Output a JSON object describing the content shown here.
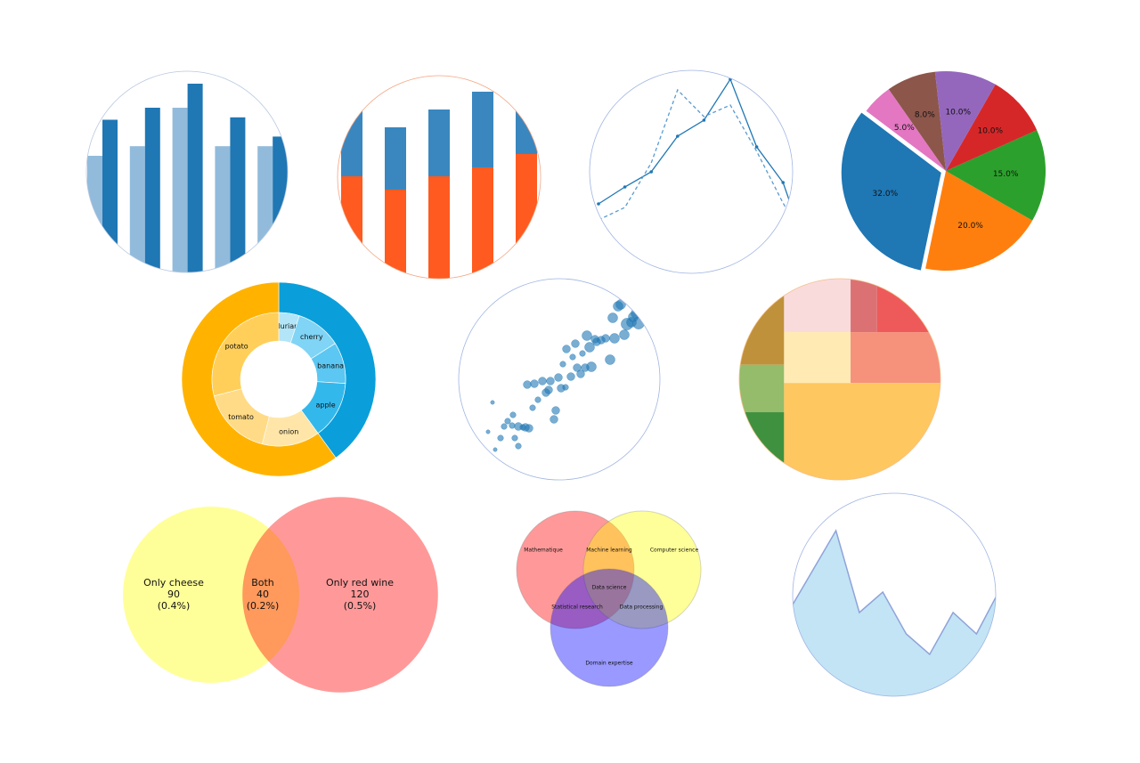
{
  "chart_data": [
    {
      "type": "bar",
      "frame_color": "#b8c8e0",
      "series": [
        {
          "color": "#92bbdb",
          "values": [
            5,
            5.4,
            7,
            5.4,
            5.4
          ]
        },
        {
          "color": "#1f77b4",
          "values": [
            6.5,
            7,
            8,
            6.6,
            5.8
          ]
        }
      ]
    },
    {
      "type": "stacked_bar",
      "frame_color": "#f4a582",
      "series": [
        {
          "color": "#ff5a1f",
          "values": [
            23,
            20,
            23,
            25,
            28
          ]
        },
        {
          "color": "#3a87c0",
          "values": [
            15,
            14,
            15,
            17,
            10
          ]
        }
      ]
    },
    {
      "type": "line",
      "frame_color": "#9fb4e3",
      "series": [
        {
          "color": "#1f77b4",
          "dashed": false,
          "markers": true,
          "values": [
            7.1,
            9.0,
            10.7,
            14.7,
            16.5,
            21.1,
            13.5,
            9.5,
            1.0
          ]
        },
        {
          "color": "#5a9bd0",
          "dashed": true,
          "markers": false,
          "values": [
            5.3,
            6.7,
            11.7,
            19.9,
            16.9,
            18.2,
            13.0,
            7.2,
            2.0
          ]
        }
      ]
    },
    {
      "type": "pie",
      "values": [
        32,
        20,
        15,
        10,
        10,
        8,
        5
      ],
      "value_labels": [
        "32.0%",
        "20.0%",
        "15.0%",
        "10.0%",
        "10.0%",
        "8.0%",
        "5.0%"
      ],
      "colors": [
        "#1f77b4",
        "#ff7f0e",
        "#2ca02c",
        "#d62728",
        "#9467bd",
        "#8c564b",
        "#e377c2"
      ],
      "explode": [
        0.05,
        0,
        0,
        0,
        0,
        0,
        0
      ]
    },
    {
      "type": "donut",
      "outer_values": [
        40,
        60
      ],
      "outer_colors": [
        "#0a9fda",
        "#ffb300"
      ],
      "categories": [
        "durian",
        "cherry",
        "banana",
        "apple",
        "onion",
        "tomato",
        "potato"
      ],
      "values": [
        5,
        11,
        10,
        14,
        14,
        17,
        29
      ],
      "colors": [
        "#b3e5f8",
        "#80d4f5",
        "#5bc7f2",
        "#33b8ec",
        "#ffe6a8",
        "#ffdb87",
        "#ffcf5a"
      ]
    },
    {
      "type": "scatter",
      "frame_color": "#9fb4e3",
      "color": "#1f77b4",
      "x": [
        1.8,
        2.3,
        2.6,
        3.2,
        3.6,
        4.0,
        4.5,
        4.6,
        4.8,
        5.2,
        5.2,
        5.7,
        6.0,
        6.4,
        6.2,
        6.8,
        7.0,
        7.4,
        7.9,
        8.3,
        8.6,
        8.8,
        9.2,
        9.4,
        9.7,
        10.0,
        10.2,
        10.5,
        10.6,
        11.1,
        11.3,
        11.6,
        11.8,
        12.2,
        12.4,
        12.7,
        12.9,
        13.2,
        13.4,
        13.8,
        14.0,
        14.5,
        15.0,
        15.5,
        15.8,
        16.0,
        16.4,
        16.7,
        17.1,
        17.4,
        17.9,
        18.1,
        18.4,
        18.7,
        18.2
      ],
      "y": [
        7.5,
        10.8,
        5.5,
        6.8,
        8.1,
        8.7,
        8.2,
        9.4,
        6.8,
        5.9,
        8.1,
        8.0,
        8.0,
        7.9,
        12.8,
        10.2,
        12.9,
        11.1,
        13.2,
        11.9,
        12.2,
        13.2,
        8.9,
        9.9,
        13.6,
        12.4,
        15.1,
        12.5,
        16.8,
        13.7,
        15.9,
        17.4,
        14.7,
        14.0,
        16.3,
        14.7,
        18.3,
        17.0,
        14.8,
        17.9,
        17.6,
        17.8,
        18.0,
        15.6,
        20.3,
        18.0,
        21.6,
        21.8,
        18.4,
        19.6,
        19.8,
        20.4,
        20.8,
        19.7,
        21.8
      ],
      "sizes": [
        2,
        2,
        2,
        3,
        3,
        3,
        3,
        3,
        3,
        3,
        4,
        3,
        4,
        4,
        4,
        3,
        4,
        3,
        4,
        4,
        4,
        4,
        4,
        4,
        4,
        4,
        3,
        3,
        4,
        4,
        3,
        4,
        4,
        4,
        3,
        4,
        5,
        5,
        5,
        4,
        4,
        4,
        4,
        5,
        5,
        5,
        5,
        5,
        5,
        6,
        5,
        5,
        5,
        6,
        5
      ]
    },
    {
      "type": "treemap",
      "frame_color": "#f4c08a",
      "values": [
        4.9,
        2.7,
        3.9,
        4.5,
        4.3,
        1.8,
        4.3,
        5.8,
        19.4
      ],
      "colors": [
        "#c0913b",
        "#94bc6a",
        "#3f913f",
        "#fadbdc",
        "#ffeab3",
        "#dc7174",
        "#ee5a5a",
        "#f6917c",
        "#ffc75f"
      ]
    },
    {
      "type": "venn2",
      "labels": [
        "Only cheese",
        "Both",
        "Only red wine"
      ],
      "values": [
        90,
        40,
        120
      ],
      "share_labels": [
        "(0.4%)",
        "(0.2%)",
        "(0.5%)"
      ],
      "colors": [
        "#ffff00",
        "#ff0000"
      ]
    },
    {
      "type": "venn3",
      "sets": [
        "Mathematique",
        "Computer science",
        "Domain expertise"
      ],
      "regions": [
        "Machine learning",
        "Statistical research",
        "Data processing",
        "Data science"
      ],
      "colors": [
        "#ff0000",
        "#ffff00",
        "#0000ff"
      ]
    },
    {
      "type": "area",
      "frame_color": "#9fb4e3",
      "color": "#c2e4f5",
      "line_color": "#8fa3d9",
      "values": [
        11.4,
        15.9,
        20.4,
        11.2,
        13.5,
        8.8,
        6.5,
        11.2,
        8.8,
        13.8
      ]
    }
  ]
}
